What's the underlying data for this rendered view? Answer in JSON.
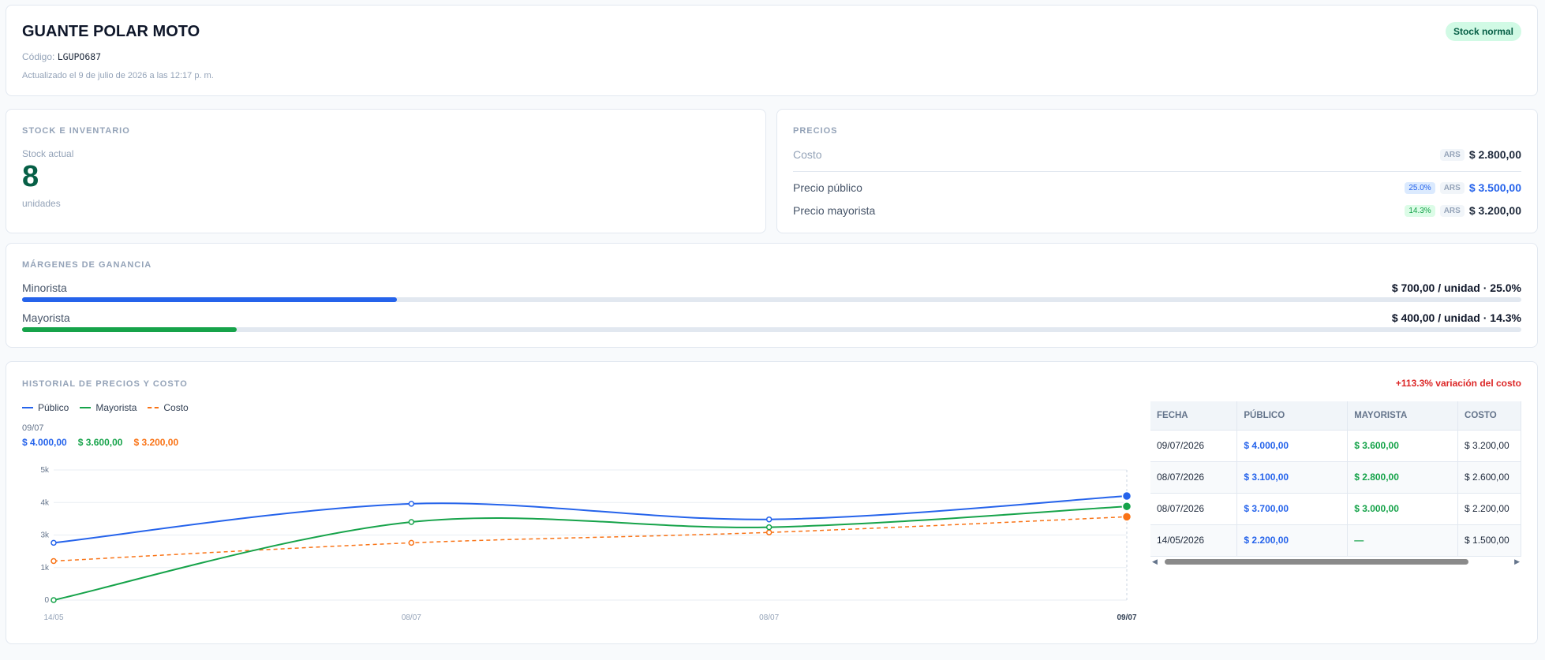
{
  "header": {
    "title": "GUANTE POLAR MOTO",
    "code_label": "Código:",
    "code_value": "LGUPO687",
    "updated": "Actualizado el 9 de julio de 2026 a las 12:17 p. m.",
    "badge": "Stock normal"
  },
  "stock": {
    "section_title": "STOCK E INVENTARIO",
    "label": "Stock actual",
    "value": "8",
    "unit": "unidades"
  },
  "prices": {
    "section_title": "PRECIOS",
    "cost": {
      "label": "Costo",
      "currency": "ARS",
      "value": "$ 2.800,00"
    },
    "public": {
      "label": "Precio público",
      "pct": "25.0%",
      "currency": "ARS",
      "value": "$ 3.500,00"
    },
    "wholesale": {
      "label": "Precio mayorista",
      "pct": "14.3%",
      "currency": "ARS",
      "value": "$ 3.200,00"
    }
  },
  "margins": {
    "section_title": "MÁRGENES DE GANANCIA",
    "retail": {
      "label": "Minorista",
      "value": "$ 700,00 / unidad · 25.0%",
      "fill": 0.25,
      "color": "#2563eb"
    },
    "wholesale": {
      "label": "Mayorista",
      "value": "$ 400,00 / unidad · 14.3%",
      "fill": 0.143,
      "color": "#16a34a"
    }
  },
  "history": {
    "section_title": "HISTORIAL DE PRECIOS Y COSTO",
    "variation": "+113.3% variación del costo",
    "legend": {
      "public": "Público",
      "wholesale": "Mayorista",
      "cost": "Costo"
    },
    "tooltip": {
      "date": "09/07",
      "public": "$ 4.000,00",
      "wholesale": "$ 3.600,00",
      "cost": "$ 3.200,00"
    },
    "table": {
      "headers": [
        "FECHA",
        "PÚBLICO",
        "MAYORISTA",
        "COSTO"
      ],
      "rows": [
        [
          "09/07/2026",
          "$ 4.000,00",
          "$ 3.600,00",
          "$ 3.200,00"
        ],
        [
          "08/07/2026",
          "$ 3.100,00",
          "$ 2.800,00",
          "$ 2.600,00"
        ],
        [
          "08/07/2026",
          "$ 3.700,00",
          "$ 3.000,00",
          "$ 2.200,00"
        ],
        [
          "14/05/2026",
          "$ 2.200,00",
          "—",
          "$ 1.500,00"
        ]
      ]
    }
  },
  "colors": {
    "public": "#2563eb",
    "wholesale": "#16a34a",
    "cost": "#f97316"
  },
  "chart_data": {
    "type": "line",
    "categories": [
      "14/05",
      "08/07",
      "08/07",
      "09/07"
    ],
    "series": [
      {
        "name": "Público",
        "values": [
          2200,
          3700,
          3100,
          4000
        ]
      },
      {
        "name": "Mayorista",
        "values": [
          0,
          3000,
          2800,
          3600
        ]
      },
      {
        "name": "Costo",
        "values": [
          1500,
          2200,
          2600,
          3200
        ]
      }
    ],
    "yticks": [
      "0",
      "1k",
      "3k",
      "4k",
      "5k"
    ],
    "ylim": [
      0,
      5000
    ],
    "grid": true,
    "legend": "top-left"
  }
}
